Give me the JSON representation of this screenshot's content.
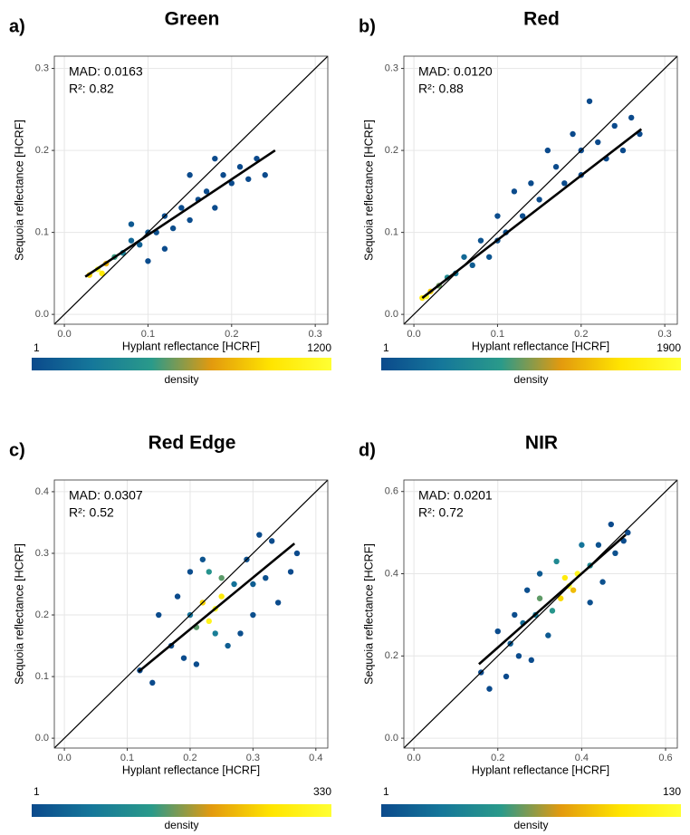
{
  "chart_data": [
    {
      "type": "scatter",
      "panel_label": "a)",
      "title": "Green",
      "xlabel": "Hyplant reflectance [HCRF]",
      "ylabel": "Sequoia reflectance [HCRF]",
      "xlim": [
        -0.012,
        0.315
      ],
      "ylim": [
        -0.012,
        0.315
      ],
      "xticks": [
        {
          "value": 0,
          "label": "0.0"
        },
        0.1,
        0.2,
        0.3
      ],
      "yticks": [
        {
          "value": 0,
          "label": "0.0"
        },
        0.1,
        0.2,
        0.3
      ],
      "annotations": [
        "MAD: 0.0163",
        "R²: 0.82"
      ],
      "x": [
        0.24,
        0.23,
        0.22,
        0.21,
        0.2,
        0.19,
        0.18,
        0.18,
        0.17,
        0.16,
        0.15,
        0.15,
        0.14,
        0.13,
        0.12,
        0.12,
        0.11,
        0.1,
        0.1,
        0.09,
        0.08,
        0.08,
        0.07,
        0.06,
        0.05,
        0.03,
        0.045,
        0.04
      ],
      "y": [
        0.17,
        0.19,
        0.165,
        0.18,
        0.16,
        0.17,
        0.13,
        0.19,
        0.15,
        0.14,
        0.115,
        0.17,
        0.13,
        0.105,
        0.12,
        0.08,
        0.1,
        0.1,
        0.065,
        0.085,
        0.09,
        0.11,
        0.075,
        0.07,
        0.062,
        0.048,
        0.05,
        0.055
      ],
      "density": [
        1,
        1,
        2,
        2,
        3,
        3,
        5,
        2,
        5,
        5,
        10,
        3,
        10,
        20,
        20,
        5,
        40,
        60,
        10,
        120,
        150,
        80,
        300,
        500,
        800,
        900,
        1000,
        1200
      ],
      "fit_line": {
        "x": [
          0.025,
          0.252
        ],
        "y": [
          0.046,
          0.2
        ]
      },
      "colorbar": {
        "min": 1,
        "max": 1200,
        "label": "density",
        "colors": [
          "#0b4a8c",
          "#15779a",
          "#2a9a8a",
          "#e39a0e",
          "#ffe500",
          "#ffff33"
        ]
      }
    },
    {
      "type": "scatter",
      "panel_label": "b)",
      "title": "Red",
      "xlabel": "Hyplant reflectance [HCRF]",
      "ylabel": "Sequoia reflectance [HCRF]",
      "xlim": [
        -0.012,
        0.315
      ],
      "ylim": [
        -0.012,
        0.315
      ],
      "xticks": [
        {
          "value": 0,
          "label": "0.0"
        },
        0.1,
        0.2,
        0.3
      ],
      "yticks": [
        {
          "value": 0,
          "label": "0.0"
        },
        0.1,
        0.2,
        0.3
      ],
      "annotations": [
        "MAD: 0.0120",
        "R²: 0.88"
      ],
      "x": [
        0.27,
        0.26,
        0.25,
        0.24,
        0.23,
        0.22,
        0.21,
        0.2,
        0.2,
        0.19,
        0.18,
        0.17,
        0.16,
        0.15,
        0.14,
        0.13,
        0.12,
        0.11,
        0.1,
        0.1,
        0.09,
        0.08,
        0.07,
        0.06,
        0.05,
        0.04,
        0.03,
        0.02,
        0.015,
        0.01
      ],
      "y": [
        0.22,
        0.24,
        0.2,
        0.23,
        0.19,
        0.21,
        0.26,
        0.17,
        0.2,
        0.22,
        0.16,
        0.18,
        0.2,
        0.14,
        0.16,
        0.12,
        0.15,
        0.1,
        0.09,
        0.12,
        0.07,
        0.09,
        0.06,
        0.07,
        0.05,
        0.045,
        0.035,
        0.028,
        0.022,
        0.02
      ],
      "density": [
        1,
        1,
        2,
        2,
        3,
        3,
        1,
        5,
        4,
        2,
        8,
        6,
        3,
        15,
        10,
        25,
        12,
        40,
        60,
        30,
        90,
        80,
        150,
        250,
        400,
        600,
        900,
        1400,
        1900,
        1600
      ],
      "fit_line": {
        "x": [
          0.01,
          0.272
        ],
        "y": [
          0.02,
          0.226
        ]
      },
      "colorbar": {
        "min": 1,
        "max": 1900,
        "label": "density",
        "colors": [
          "#0b4a8c",
          "#15779a",
          "#2a9a8a",
          "#e39a0e",
          "#ffe500",
          "#ffff33"
        ]
      }
    },
    {
      "type": "scatter",
      "panel_label": "c)",
      "title": "Red Edge",
      "xlabel": "Hyplant reflectance [HCRF]",
      "ylabel": "Sequoia reflectance [HCRF]",
      "xlim": [
        -0.016,
        0.419
      ],
      "ylim": [
        -0.016,
        0.419
      ],
      "xticks": [
        {
          "value": 0,
          "label": "0.0"
        },
        0.1,
        0.2,
        0.3,
        0.4
      ],
      "yticks": [
        {
          "value": 0,
          "label": "0.0"
        },
        0.1,
        0.2,
        0.3,
        0.4
      ],
      "annotations": [
        "MAD: 0.0307",
        "R²: 0.52"
      ],
      "x": [
        0.12,
        0.14,
        0.15,
        0.17,
        0.18,
        0.19,
        0.2,
        0.33,
        0.34,
        0.36,
        0.37,
        0.31,
        0.3,
        0.29,
        0.28,
        0.21,
        0.22,
        0.32,
        0.27,
        0.26,
        0.2,
        0.3,
        0.23,
        0.24,
        0.25,
        0.21,
        0.22,
        0.23,
        0.24,
        0.25
      ],
      "y": [
        0.11,
        0.09,
        0.2,
        0.15,
        0.23,
        0.13,
        0.27,
        0.32,
        0.22,
        0.27,
        0.3,
        0.33,
        0.2,
        0.29,
        0.17,
        0.12,
        0.29,
        0.26,
        0.25,
        0.15,
        0.2,
        0.25,
        0.27,
        0.17,
        0.26,
        0.18,
        0.22,
        0.19,
        0.21,
        0.23
      ],
      "density": [
        1,
        1,
        2,
        3,
        3,
        4,
        5,
        3,
        2,
        1,
        1,
        4,
        8,
        10,
        8,
        5,
        15,
        10,
        60,
        30,
        60,
        30,
        120,
        80,
        150,
        150,
        250,
        300,
        330,
        280
      ],
      "fit_line": {
        "x": [
          0.118,
          0.366
        ],
        "y": [
          0.108,
          0.316
        ]
      },
      "colorbar": {
        "min": 1,
        "max": 330,
        "label": "density",
        "colors": [
          "#0b4a8c",
          "#15779a",
          "#2a9a8a",
          "#e39a0e",
          "#ffe500",
          "#ffff33"
        ]
      }
    },
    {
      "type": "scatter",
      "panel_label": "d)",
      "title": "NIR",
      "xlabel": "Hyplant reflectance [HCRF]",
      "ylabel": "Sequoia reflectance [HCRF]",
      "xlim": [
        -0.024,
        0.628
      ],
      "ylim": [
        -0.024,
        0.628
      ],
      "xticks": [
        {
          "value": 0,
          "label": "0.0"
        },
        0.2,
        0.4,
        0.6
      ],
      "yticks": [
        {
          "value": 0,
          "label": "0.0"
        },
        0.2,
        0.4,
        0.6
      ],
      "annotations": [
        "MAD: 0.0201",
        "R²: 0.72"
      ],
      "x": [
        0.16,
        0.18,
        0.2,
        0.22,
        0.24,
        0.25,
        0.27,
        0.28,
        0.47,
        0.5,
        0.51,
        0.45,
        0.44,
        0.42,
        0.23,
        0.3,
        0.26,
        0.32,
        0.48,
        0.4,
        0.29,
        0.34,
        0.42,
        0.3,
        0.33,
        0.38,
        0.36,
        0.35,
        0.39,
        0.37
      ],
      "y": [
        0.16,
        0.12,
        0.26,
        0.15,
        0.3,
        0.2,
        0.36,
        0.19,
        0.52,
        0.48,
        0.5,
        0.38,
        0.47,
        0.33,
        0.23,
        0.4,
        0.28,
        0.25,
        0.45,
        0.47,
        0.3,
        0.43,
        0.42,
        0.34,
        0.31,
        0.36,
        0.39,
        0.34,
        0.4,
        0.37
      ],
      "density": [
        1,
        1,
        2,
        1,
        3,
        2,
        4,
        2,
        1,
        2,
        1,
        5,
        6,
        4,
        10,
        10,
        20,
        10,
        5,
        25,
        30,
        40,
        40,
        60,
        50,
        90,
        110,
        100,
        120,
        130
      ],
      "fit_line": {
        "x": [
          0.155,
          0.505
        ],
        "y": [
          0.18,
          0.495
        ]
      },
      "colorbar": {
        "min": 1,
        "max": 130,
        "label": "density",
        "colors": [
          "#0b4a8c",
          "#15779a",
          "#2a9a8a",
          "#e39a0e",
          "#ffe500",
          "#ffff33"
        ]
      }
    }
  ]
}
